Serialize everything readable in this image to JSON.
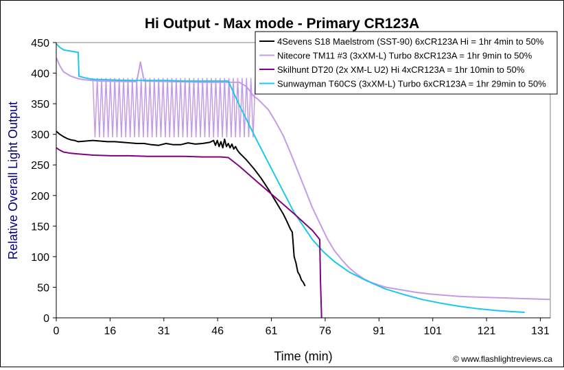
{
  "chart_data": {
    "type": "line",
    "title": "Hi Output - Max mode - Primary CR123A",
    "xlabel": "Time (min)",
    "ylabel": "Relative Overall Light Output",
    "xlim": [
      0,
      135
    ],
    "ylim": [
      0,
      450
    ],
    "x_ticks": [
      0,
      16,
      31,
      46,
      61,
      76,
      91,
      101,
      121,
      131
    ],
    "y_ticks": [
      0,
      50,
      100,
      150,
      200,
      250,
      300,
      350,
      400,
      450
    ],
    "grid": false,
    "legend_position": "top-right",
    "credit": "© www.flashlightreviews.ca",
    "series": [
      {
        "name": "4Sevens S18 Maelstrom (SST-90) 6xCR123A Hi = 1hr 4min to 50%",
        "color": "#000000",
        "x": [
          0,
          1,
          2,
          3,
          4,
          5,
          6,
          8,
          10,
          12,
          14,
          16,
          18,
          20,
          22,
          24,
          26,
          28,
          30,
          32,
          34,
          36,
          38,
          40,
          42,
          43,
          43.5,
          44,
          44.5,
          45,
          45.5,
          46,
          46.5,
          47,
          47.5,
          48,
          48.5,
          49,
          49.5,
          50,
          52,
          54,
          56,
          58,
          60,
          62,
          63,
          64,
          64.5,
          65,
          65.5,
          66,
          66.5,
          67,
          67.5,
          68
        ],
        "values": [
          305,
          300,
          296,
          293,
          291,
          290,
          288,
          289,
          290,
          289,
          288,
          288,
          287,
          286,
          285,
          285,
          283,
          282,
          285,
          283,
          283,
          286,
          284,
          285,
          287,
          290,
          282,
          290,
          280,
          288,
          278,
          292,
          280,
          285,
          278,
          284,
          276,
          280,
          274,
          270,
          258,
          244,
          228,
          210,
          190,
          170,
          158,
          145,
          140,
          100,
          90,
          75,
          70,
          62,
          58,
          52
        ]
      },
      {
        "name": "Nitecore TM11 #3 (3xXM-L) Turbo 8xCR123A = 1hr 9min to 50%",
        "color": "#c49ae6",
        "x": [
          0,
          1,
          2,
          4,
          6,
          8,
          10,
          12,
          22,
          23,
          24,
          40,
          46,
          50,
          52,
          53,
          54,
          55,
          56,
          58,
          60,
          62,
          64,
          66,
          68,
          70,
          72,
          74,
          76,
          78,
          80,
          82,
          84,
          86,
          88,
          90,
          94,
          98,
          102,
          106,
          110,
          115,
          120,
          125,
          130,
          135
        ],
        "values": [
          425,
          412,
          402,
          395,
          391,
          389,
          388,
          387,
          386,
          418,
          387,
          385,
          385,
          385,
          378,
          370,
          362,
          358,
          352,
          340,
          320,
          298,
          270,
          240,
          210,
          180,
          155,
          130,
          110,
          95,
          82,
          72,
          64,
          58,
          54,
          50,
          46,
          42,
          39,
          37,
          35,
          34,
          33,
          32,
          31,
          30
        ]
      },
      {
        "name": "Skilhunt DT20 (2x XM-L U2) Hi 4xCR123A = 1hr 10min to 50%",
        "color": "#800080",
        "x": [
          0,
          1,
          2,
          4,
          6,
          8,
          10,
          15,
          20,
          25,
          30,
          35,
          40,
          45,
          47,
          50,
          55,
          60,
          65,
          70,
          72,
          72.2,
          72.5
        ],
        "values": [
          278,
          274,
          271,
          269,
          268,
          267,
          266,
          265,
          265,
          264,
          264,
          264,
          263,
          263,
          262,
          248,
          222,
          196,
          170,
          143,
          128,
          60,
          0
        ]
      },
      {
        "name": "Sunwayman T60CS (3xXM-L) Turbo 6xCR123A = 1hr 29min to 50%",
        "color": "#18c8ee",
        "x": [
          0,
          1,
          2,
          4,
          6,
          6.2,
          8,
          10,
          15,
          20,
          25,
          30,
          35,
          40,
          45,
          47,
          50,
          55,
          60,
          65,
          70,
          73,
          76,
          80,
          85,
          90,
          95,
          100,
          105,
          110,
          115,
          120,
          125,
          128
        ],
        "values": [
          448,
          442,
          438,
          436,
          434,
          395,
          392,
          390,
          389,
          388,
          388,
          388,
          387,
          387,
          387,
          387,
          348,
          288,
          230,
          172,
          128,
          108,
          92,
          75,
          60,
          47,
          38,
          30,
          24,
          19,
          15,
          12,
          10,
          9
        ]
      }
    ],
    "oscillation_band": {
      "series_index": 1,
      "x_start": 10,
      "x_end": 55,
      "period": 1.2,
      "low": 295,
      "high": 392
    }
  }
}
